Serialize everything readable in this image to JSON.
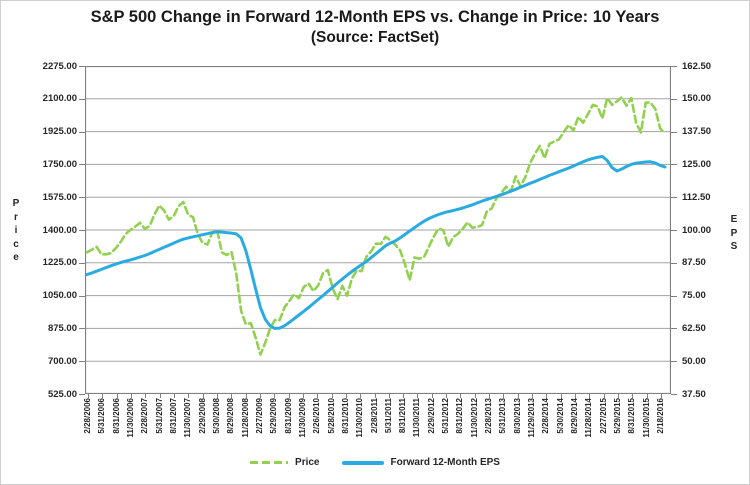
{
  "header": {
    "title": "S&P 500 Change in Forward 12-Month EPS vs. Change in Price: 10 Years",
    "subtitle": "(Source: FactSet)"
  },
  "chart_data": {
    "type": "line",
    "title": "S&P 500 Change in Forward 12-Month EPS vs. Change in Price: 10 Years",
    "subtitle": "(Source: FactSet)",
    "grid": true,
    "legend_position": "bottom",
    "points_per_tick": 3,
    "colors": {
      "price_green": "#92D050",
      "eps_blue": "#29ABE2",
      "grid": "#A3A3A3",
      "axis": "#808080",
      "text": "#262626"
    },
    "left_axis": {
      "title": "Price",
      "min": 525,
      "max": 2275,
      "step": 175,
      "tick_labels": [
        "2275.00",
        "2100.00",
        "1925.00",
        "1750.00",
        "1575.00",
        "1400.00",
        "1225.00",
        "1050.00",
        "875.00",
        "700.00",
        "525.00"
      ]
    },
    "right_axis": {
      "title": "EPS",
      "min": 37.5,
      "max": 162.5,
      "step": 12.5,
      "tick_labels": [
        "162.50",
        "150.00",
        "137.50",
        "125.00",
        "112.50",
        "100.00",
        "87.50",
        "75.00",
        "62.50",
        "50.00",
        "37.50"
      ]
    },
    "x_tick_labels": [
      "2/28/2006",
      "5/31/2006",
      "8/31/2006",
      "11/30/2006",
      "2/28/2007",
      "5/31/2007",
      "8/31/2007",
      "11/30/2007",
      "2/29/2008",
      "5/30/2008",
      "8/29/2008",
      "11/28/2008",
      "2/27/2009",
      "5/29/2009",
      "8/31/2009",
      "11/30/2009",
      "2/26/2010",
      "5/28/2010",
      "8/31/2010",
      "11/30/2010",
      "2/28/2011",
      "5/31/2011",
      "8/31/2011",
      "11/30/2011",
      "2/29/2012",
      "5/31/2012",
      "8/31/2012",
      "11/30/2012",
      "2/28/2013",
      "5/31/2013",
      "8/30/2013",
      "11/29/2013",
      "2/28/2014",
      "5/30/2014",
      "8/29/2014",
      "11/28/2014",
      "2/27/2015",
      "5/29/2015",
      "8/31/2015",
      "11/30/2015",
      "2/18/2016"
    ],
    "series": [
      {
        "name": "Price",
        "axis": "left",
        "color": "#92D050",
        "style": "dashed",
        "values": [
          1280.66,
          1294.87,
          1310.61,
          1270.09,
          1270.2,
          1276.66,
          1303.82,
          1335.85,
          1377.94,
          1400.63,
          1418.3,
          1438.24,
          1406.82,
          1420.86,
          1482.37,
          1530.62,
          1503.35,
          1455.27,
          1473.99,
          1526.75,
          1549.38,
          1481.14,
          1468.36,
          1378.55,
          1330.63,
          1322.7,
          1385.59,
          1400.38,
          1280.0,
          1267.38,
          1282.83,
          1166.36,
          968.75,
          896.24,
          903.25,
          825.88,
          735.09,
          797.87,
          872.81,
          919.14,
          919.32,
          987.48,
          1020.62,
          1057.08,
          1036.19,
          1095.63,
          1115.1,
          1073.87,
          1104.49,
          1169.43,
          1186.69,
          1089.41,
          1030.71,
          1101.6,
          1049.33,
          1141.2,
          1183.26,
          1180.55,
          1257.64,
          1286.12,
          1327.22,
          1325.83,
          1363.61,
          1345.2,
          1320.64,
          1292.28,
          1218.89,
          1131.42,
          1253.3,
          1246.96,
          1257.6,
          1312.41,
          1365.68,
          1408.47,
          1397.91,
          1310.33,
          1362.16,
          1379.32,
          1406.58,
          1440.67,
          1412.16,
          1416.18,
          1426.19,
          1498.11,
          1514.68,
          1569.19,
          1597.57,
          1630.74,
          1606.28,
          1685.73,
          1632.97,
          1681.55,
          1756.54,
          1805.81,
          1848.36,
          1782.59,
          1859.45,
          1872.34,
          1883.95,
          1923.57,
          1960.23,
          1930.67,
          2003.37,
          1972.29,
          2018.05,
          2067.56,
          2058.9,
          1994.99,
          2104.5,
          2067.89,
          2085.51,
          2107.39,
          2063.11,
          2103.84,
          1972.18,
          1920.03,
          2079.36,
          2080.41,
          2043.94,
          1940.24,
          1917.83
        ]
      },
      {
        "name": "Forward 12-Month EPS",
        "axis": "right",
        "color": "#29ABE2",
        "style": "solid",
        "values": [
          83.0,
          83.6,
          84.3,
          85.0,
          85.7,
          86.4,
          87.0,
          87.6,
          88.1,
          88.6,
          89.1,
          89.7,
          90.3,
          91.0,
          91.8,
          92.6,
          93.4,
          94.2,
          95.0,
          95.8,
          96.5,
          97.0,
          97.4,
          97.8,
          98.2,
          98.6,
          99.0,
          99.3,
          99.2,
          99.0,
          98.8,
          98.5,
          97.0,
          92.0,
          85.0,
          77.5,
          70.5,
          66.0,
          63.5,
          62.5,
          62.6,
          63.5,
          64.8,
          66.2,
          67.6,
          69.0,
          70.5,
          72.0,
          73.5,
          75.0,
          76.6,
          78.2,
          79.8,
          81.3,
          82.8,
          84.2,
          85.5,
          86.8,
          88.0,
          89.5,
          91.0,
          92.5,
          94.0,
          95.0,
          95.8,
          97.0,
          98.3,
          99.6,
          100.9,
          102.2,
          103.4,
          104.4,
          105.2,
          105.9,
          106.5,
          107.0,
          107.4,
          107.9,
          108.4,
          109.0,
          109.6,
          110.3,
          111.0,
          111.6,
          112.2,
          112.8,
          113.4,
          114.1,
          114.8,
          115.5,
          116.3,
          117.0,
          117.8,
          118.5,
          119.3,
          120.0,
          120.8,
          121.5,
          122.2,
          122.9,
          123.6,
          124.4,
          125.2,
          126.0,
          126.7,
          127.3,
          127.7,
          128.0,
          126.5,
          123.8,
          122.5,
          123.2,
          124.2,
          125.0,
          125.5,
          125.7,
          125.9,
          126.0,
          125.5,
          124.6,
          124.0
        ]
      }
    ]
  }
}
